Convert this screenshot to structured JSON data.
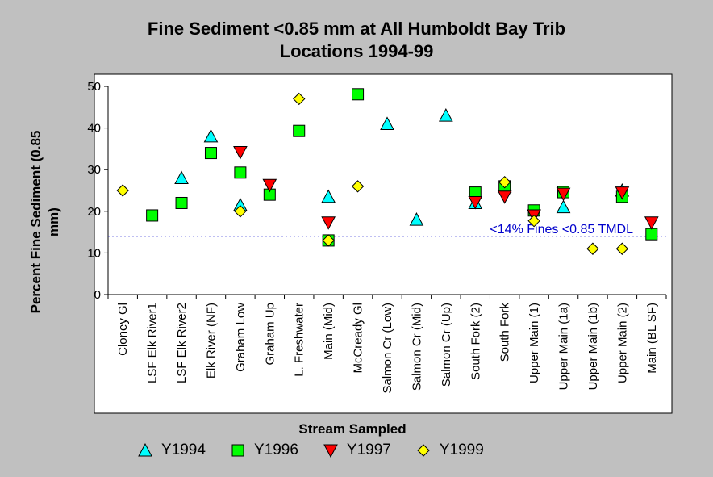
{
  "chart_data": {
    "type": "scatter",
    "title_line1": "Fine Sediment <0.85 mm at All Humboldt Bay Trib",
    "title_line2": "Locations 1994-99",
    "xlabel": "Stream Sampled",
    "ylabel": "Percent Fine Sediment (0.85 mm)",
    "ylim": [
      0,
      50
    ],
    "yticks": [
      0,
      10,
      20,
      30,
      40,
      50
    ],
    "grid": false,
    "legend_position": "bottom",
    "categories": [
      "Cloney Gl",
      "LSF Elk River1",
      "LSF Elk River2",
      "Elk River (NF)",
      "Graham Low",
      "Graham Up",
      "L. Freshwater",
      "Main (Mid)",
      "McCready Gl",
      "Salmon Cr (Low)",
      "Salmon Cr (Mid)",
      "Salmon Cr (Up)",
      "South Fork (2)",
      "South Fork",
      "Upper Main (1)",
      "Upper Main (1a)",
      "Upper Main (1b)",
      "Upper Main (2)",
      "Main (BL SF)"
    ],
    "series": [
      {
        "name": "Y1994",
        "marker": "triangle-up",
        "color": "#00ffff",
        "values": [
          null,
          null,
          28,
          38,
          21.5,
          null,
          null,
          23.5,
          null,
          41,
          18,
          43,
          22,
          26,
          null,
          21,
          null,
          25,
          null
        ]
      },
      {
        "name": "Y1996",
        "marker": "square",
        "color": "#00ff00",
        "values": [
          null,
          19,
          22,
          34,
          29.3,
          24,
          39.3,
          13,
          48.1,
          null,
          null,
          null,
          24.5,
          26,
          20.2,
          24.6,
          null,
          23.5,
          14.5
        ]
      },
      {
        "name": "Y1997",
        "marker": "triangle-down",
        "color": "#ff0000",
        "values": [
          null,
          null,
          null,
          null,
          34.2,
          26.3,
          null,
          17.3,
          null,
          null,
          null,
          null,
          22.2,
          23.5,
          19,
          24.2,
          null,
          24.5,
          17.3
        ]
      },
      {
        "name": "Y1999",
        "marker": "diamond",
        "color": "#ffff00",
        "values": [
          25,
          null,
          null,
          null,
          20,
          null,
          47,
          13,
          26,
          null,
          null,
          null,
          null,
          27,
          17.7,
          null,
          11,
          11,
          null
        ]
      }
    ],
    "reference_line": {
      "value": 14,
      "label": "<14% Fines <0.85 TMDL",
      "color": "#0000cc"
    }
  }
}
